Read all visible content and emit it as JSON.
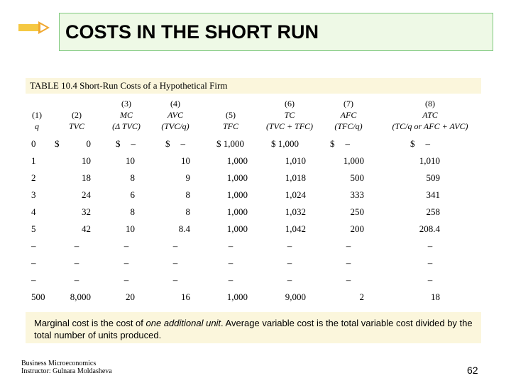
{
  "title": "COSTS IN THE SHORT RUN",
  "table": {
    "caption": "TABLE 10.4 Short-Run Costs of a Hypothetical Firm",
    "headers": [
      {
        "num": "(1)",
        "name": "q",
        "formula": ""
      },
      {
        "num": "(2)",
        "name": "TVC",
        "formula": ""
      },
      {
        "num": "(3)",
        "name": "MC",
        "formula": "(Δ TVC)"
      },
      {
        "num": "(4)",
        "name": "AVC",
        "formula": "(TVC/q)"
      },
      {
        "num": "(5)",
        "name": "TFC",
        "formula": ""
      },
      {
        "num": "(6)",
        "name": "TC",
        "formula": "(TVC + TFC)"
      },
      {
        "num": "(7)",
        "name": "AFC",
        "formula": "(TFC/q)"
      },
      {
        "num": "(8)",
        "name": "ATC",
        "formula": "(TC/q or AFC + AVC)"
      }
    ],
    "rows": [
      [
        "0",
        "$ 0",
        "$ –",
        "$ –",
        "$ 1,000",
        "$ 1,000",
        "$ –",
        "$ –"
      ],
      [
        "1",
        "10",
        "10",
        "10",
        "1,000",
        "1,010",
        "1,000",
        "1,010"
      ],
      [
        "2",
        "18",
        "8",
        "9",
        "1,000",
        "1,018",
        "500",
        "509"
      ],
      [
        "3",
        "24",
        "6",
        "8",
        "1,000",
        "1,024",
        "333",
        "341"
      ],
      [
        "4",
        "32",
        "8",
        "8",
        "1,000",
        "1,032",
        "250",
        "258"
      ],
      [
        "5",
        "42",
        "10",
        "8.4",
        "1,000",
        "1,042",
        "200",
        "208.4"
      ],
      [
        "–",
        "–",
        "–",
        "–",
        "–",
        "–",
        "–",
        "–"
      ],
      [
        "–",
        "–",
        "–",
        "–",
        "–",
        "–",
        "–",
        "–"
      ],
      [
        "–",
        "–",
        "–",
        "–",
        "–",
        "–",
        "–",
        "–"
      ],
      [
        "500",
        "8,000",
        "20",
        "16",
        "1,000",
        "9,000",
        "2",
        "18"
      ]
    ]
  },
  "note": {
    "part1": "Marginal cost is the cost of ",
    "emphasis": "one additional unit",
    "part2": ".   Average variable cost is the total variable cost divided by the total number of units produced."
  },
  "footer": {
    "line1": "Business Microeconomics",
    "line2": "Instructor: Gulnara Moldasheva"
  },
  "page_number": "62",
  "colors": {
    "title_bg": "#eef9e6",
    "title_border": "#7fc97f",
    "table_band": "#fbf6dc",
    "deco": "#f5c842"
  }
}
